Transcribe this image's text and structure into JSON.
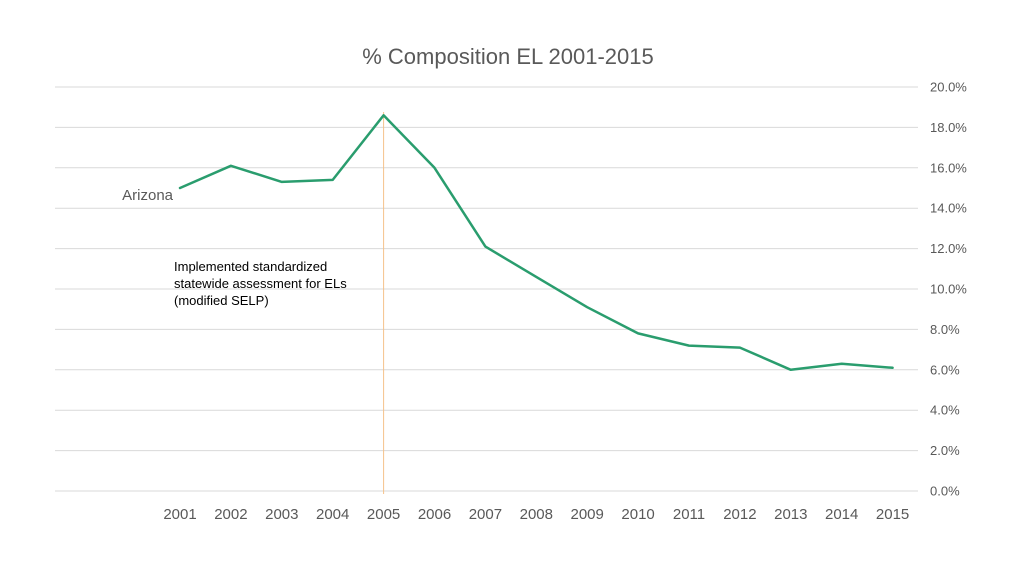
{
  "chart_data": {
    "type": "line",
    "title": "% Composition EL 2001-2015",
    "xlabel": "",
    "ylabel": "",
    "categories": [
      "2001",
      "2002",
      "2003",
      "2004",
      "2005",
      "2006",
      "2007",
      "2008",
      "2009",
      "2010",
      "2011",
      "2012",
      "2013",
      "2014",
      "2015"
    ],
    "series": [
      {
        "name": "Arizona",
        "values": [
          15.0,
          16.1,
          15.3,
          15.4,
          18.6,
          16.0,
          12.1,
          10.6,
          9.1,
          7.8,
          7.2,
          7.1,
          6.0,
          6.3,
          6.1
        ]
      }
    ],
    "ylim": [
      0,
      20
    ],
    "yticks": [
      0,
      2,
      4,
      6,
      8,
      10,
      12,
      14,
      16,
      18,
      20
    ],
    "ytick_labels": [
      "0.0%",
      "2.0%",
      "4.0%",
      "6.0%",
      "8.0%",
      "10.0%",
      "12.0%",
      "14.0%",
      "16.0%",
      "18.0%",
      "20.0%"
    ],
    "y_axis_side": "right",
    "grid": true,
    "annotations": [
      {
        "at_category": "2005",
        "type": "vertical-line",
        "lines": [
          "Implemented standardized",
          "statewide assessment for ELs",
          "(modified SELP)"
        ]
      }
    ]
  },
  "colors": {
    "series_line": "#2a9d6e",
    "marker_line": "#f5c28a",
    "text": "#595959",
    "grid": "#d9d9d9"
  }
}
